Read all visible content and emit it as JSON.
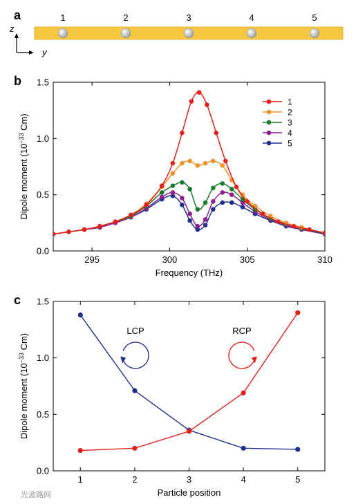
{
  "panel_labels": {
    "a": "a",
    "b": "b",
    "c": "c"
  },
  "panel_a": {
    "particle_labels": [
      "1",
      "2",
      "3",
      "4",
      "5"
    ],
    "axis_z": "z",
    "axis_y": "y",
    "colors": {
      "bar": "#f5c842",
      "bar_edge": "#d9a818",
      "sphere": "#e6ebe0"
    }
  },
  "watermark": "光波路网",
  "chart_data": [
    {
      "type": "line",
      "panel": "b",
      "xlabel": "Frequency (THz)",
      "ylabel": "Dipole moment (10^-33 Cm)",
      "ylabel_parts": {
        "pre": "Dipole moment (10",
        "sup": "−33",
        "post": " Cm)"
      },
      "xlim": [
        292.5,
        310
      ],
      "ylim": [
        0,
        1.5
      ],
      "xticks": [
        295,
        300,
        305,
        310
      ],
      "yticks": [
        0.0,
        0.5,
        1.0,
        1.5
      ],
      "xtick_labels": [
        "295",
        "300",
        "305",
        "310"
      ],
      "ytick_labels": [
        "0.0",
        "0.5",
        "1.0",
        "1.5"
      ],
      "legend_position": "top-right",
      "grid": false,
      "series": [
        {
          "name": "1",
          "color": "#e3201b",
          "x": [
            292.5,
            293.5,
            294.5,
            295.5,
            296.5,
            297.5,
            298.5,
            299.5,
            300.2,
            300.8,
            301.4,
            301.9,
            302.4,
            303,
            303.6,
            304.3,
            305,
            306,
            307,
            308,
            309,
            310
          ],
          "y": [
            0.15,
            0.17,
            0.19,
            0.22,
            0.26,
            0.32,
            0.41,
            0.58,
            0.78,
            1.05,
            1.33,
            1.41,
            1.3,
            1.05,
            0.8,
            0.57,
            0.44,
            0.33,
            0.26,
            0.22,
            0.19,
            0.16
          ]
        },
        {
          "name": "2",
          "color": "#f0922b",
          "x": [
            292.5,
            293.5,
            294.5,
            295.5,
            296.5,
            297.5,
            298.5,
            299.5,
            300.2,
            300.8,
            301.3,
            301.8,
            302.3,
            302.8,
            303.4,
            304,
            304.7,
            305.5,
            306.5,
            307.5,
            308.5,
            310
          ],
          "y": [
            0.15,
            0.17,
            0.19,
            0.22,
            0.26,
            0.32,
            0.42,
            0.57,
            0.69,
            0.78,
            0.8,
            0.76,
            0.78,
            0.8,
            0.76,
            0.63,
            0.5,
            0.4,
            0.31,
            0.25,
            0.21,
            0.16
          ]
        },
        {
          "name": "3",
          "color": "#1a7a2e",
          "x": [
            292.5,
            293.5,
            294.5,
            295.5,
            296.5,
            297.5,
            298.5,
            299.5,
            300.2,
            300.8,
            301.3,
            301.8,
            302.3,
            302.8,
            303.4,
            304,
            304.7,
            305.5,
            306.5,
            307.5,
            308.5,
            310
          ],
          "y": [
            0.15,
            0.17,
            0.19,
            0.22,
            0.26,
            0.31,
            0.4,
            0.52,
            0.58,
            0.61,
            0.55,
            0.37,
            0.43,
            0.56,
            0.6,
            0.55,
            0.46,
            0.37,
            0.29,
            0.24,
            0.2,
            0.16
          ]
        },
        {
          "name": "4",
          "color": "#8b1f8f",
          "x": [
            292.5,
            293.5,
            294.5,
            295.5,
            296.5,
            297.5,
            298.5,
            299.5,
            300.2,
            300.8,
            301.3,
            301.8,
            302.3,
            302.8,
            303.4,
            304,
            304.7,
            305.5,
            306.5,
            307.5,
            308.5,
            310
          ],
          "y": [
            0.15,
            0.17,
            0.19,
            0.21,
            0.25,
            0.3,
            0.38,
            0.48,
            0.52,
            0.47,
            0.33,
            0.22,
            0.28,
            0.44,
            0.52,
            0.5,
            0.43,
            0.35,
            0.28,
            0.23,
            0.19,
            0.16
          ]
        },
        {
          "name": "5",
          "color": "#1f2f8c",
          "x": [
            292.5,
            293.5,
            294.5,
            295.5,
            296.5,
            297.5,
            298.5,
            299.5,
            300.2,
            300.8,
            301.3,
            301.8,
            302.3,
            302.8,
            303.4,
            304,
            304.7,
            305.5,
            306.5,
            307.5,
            308.5,
            310
          ],
          "y": [
            0.15,
            0.17,
            0.19,
            0.21,
            0.25,
            0.3,
            0.37,
            0.46,
            0.49,
            0.41,
            0.27,
            0.19,
            0.23,
            0.37,
            0.43,
            0.43,
            0.39,
            0.33,
            0.27,
            0.22,
            0.19,
            0.15
          ]
        }
      ]
    },
    {
      "type": "line",
      "panel": "c",
      "xlabel": "Particle position",
      "ylabel": "Dipole moment (10^-33 Cm)",
      "ylabel_parts": {
        "pre": "Dipole moment (10",
        "sup": "−33",
        "post": " Cm)"
      },
      "xlim": [
        0.5,
        5.5
      ],
      "ylim": [
        0,
        1.5
      ],
      "xticks": [
        1,
        2,
        3,
        4,
        5
      ],
      "yticks": [
        0.0,
        0.5,
        1.0,
        1.5
      ],
      "xtick_labels": [
        "1",
        "2",
        "3",
        "4",
        "5"
      ],
      "ytick_labels": [
        "0.0",
        "0.5",
        "1.0",
        "1.5"
      ],
      "grid": false,
      "series": [
        {
          "name": "LCP",
          "color": "#1f2f8c",
          "x": [
            1,
            2,
            3,
            4,
            5
          ],
          "y": [
            1.38,
            0.71,
            0.36,
            0.2,
            0.19
          ]
        },
        {
          "name": "RCP",
          "color": "#e3201b",
          "x": [
            1,
            2,
            3,
            4,
            5
          ],
          "y": [
            0.18,
            0.2,
            0.35,
            0.69,
            1.4
          ]
        }
      ],
      "annotations": [
        {
          "text": "LCP",
          "color": "#1f2f8c",
          "arrow": "counterclockwise"
        },
        {
          "text": "RCP",
          "color": "#e3201b",
          "arrow": "clockwise"
        }
      ]
    }
  ]
}
